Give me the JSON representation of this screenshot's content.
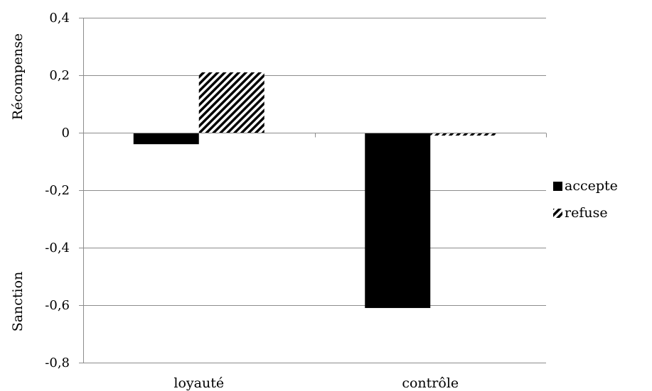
{
  "chart_data": {
    "type": "bar",
    "categories": [
      "loyauté",
      "contrôle"
    ],
    "series": [
      {
        "name": "accepte",
        "values": [
          -0.04,
          -0.61
        ],
        "color": "#000000",
        "pattern": "solid"
      },
      {
        "name": "refuse",
        "values": [
          0.21,
          -0.01
        ],
        "color": "#000000",
        "pattern": "diagonal-hatch"
      }
    ],
    "ylim": [
      -0.8,
      0.4
    ],
    "yticks": [
      0.4,
      0.2,
      0,
      -0.2,
      -0.4,
      -0.6,
      -0.8
    ],
    "ytick_labels": [
      "0,4",
      "0,2",
      "0",
      "-0,2",
      "-0,4",
      "-0,6",
      "-0,8"
    ],
    "ylabel_top": "Récompense",
    "ylabel_bottom": "Sanction",
    "grid": true,
    "legend_position": "right"
  }
}
